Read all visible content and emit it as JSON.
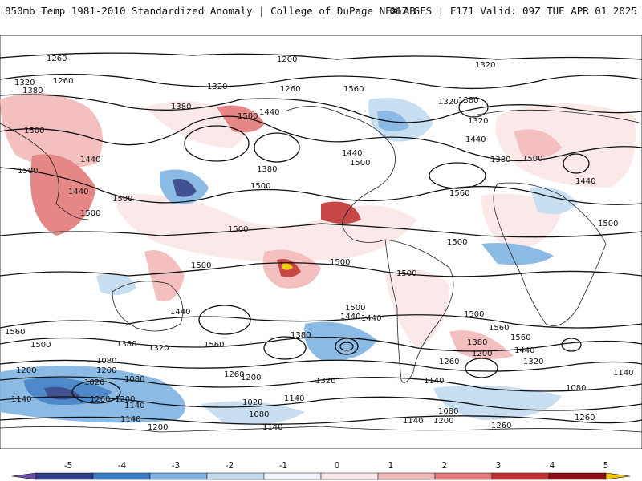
{
  "header": {
    "title_left": "850mb Temp 1981-2010 Standardized Anomaly | College of DuPage NEXLAB",
    "title_right": "06Z GFS | F171 Valid: 09Z TUE APR 01 2025"
  },
  "colors": {
    "strong_cold": "#2d3f86",
    "cold": "#3b7dc4",
    "mild_cold": "#9ec6ea",
    "slight_cold": "#d9e6f3",
    "slight_warm": "#f6d8d8",
    "mild_warm": "#eda4a4",
    "warm": "#d45656",
    "strong_warm": "#a8121c",
    "extreme_warm": "#f4c400",
    "land": "#f7f7f7",
    "contour": "#111111"
  },
  "contour_labels": [
    {
      "id": "c1",
      "text": "1260"
    },
    {
      "id": "c2",
      "text": "1200"
    },
    {
      "id": "c3",
      "text": "1320"
    },
    {
      "id": "c4",
      "text": "1320"
    },
    {
      "id": "c5",
      "text": "1260"
    },
    {
      "id": "c6",
      "text": "1380"
    },
    {
      "id": "c7",
      "text": "1320"
    },
    {
      "id": "c8",
      "text": "1260"
    },
    {
      "id": "c9",
      "text": "1380"
    },
    {
      "id": "c10",
      "text": "1440"
    },
    {
      "id": "c11",
      "text": "1560"
    },
    {
      "id": "c12",
      "text": "1500"
    },
    {
      "id": "c13",
      "text": "1500"
    },
    {
      "id": "c14",
      "text": "1380"
    },
    {
      "id": "c15",
      "text": "1440"
    },
    {
      "id": "c16",
      "text": "1500"
    },
    {
      "id": "c17",
      "text": "1440"
    },
    {
      "id": "c18",
      "text": "1500"
    },
    {
      "id": "c19",
      "text": "1500"
    },
    {
      "id": "c20",
      "text": "1440"
    },
    {
      "id": "c21",
      "text": "1500"
    },
    {
      "id": "c22",
      "text": "1500"
    },
    {
      "id": "c23",
      "text": "1320"
    },
    {
      "id": "c24",
      "text": "1380"
    },
    {
      "id": "c25",
      "text": "1320"
    },
    {
      "id": "c26",
      "text": "1380"
    },
    {
      "id": "c27",
      "text": "1440"
    },
    {
      "id": "c28",
      "text": "1500"
    },
    {
      "id": "c29",
      "text": "1500"
    },
    {
      "id": "c30",
      "text": "1560"
    },
    {
      "id": "c31",
      "text": "1440"
    },
    {
      "id": "c32",
      "text": "1500"
    },
    {
      "id": "c33",
      "text": "1500"
    },
    {
      "id": "c34",
      "text": "1500"
    },
    {
      "id": "c35",
      "text": "1500"
    },
    {
      "id": "c36",
      "text": "1500"
    },
    {
      "id": "c37",
      "text": "1440"
    },
    {
      "id": "c38",
      "text": "1560"
    },
    {
      "id": "c39",
      "text": "1500"
    },
    {
      "id": "c40",
      "text": "1440"
    },
    {
      "id": "c41",
      "text": "1380"
    },
    {
      "id": "c42",
      "text": "1560"
    },
    {
      "id": "c43",
      "text": "1380"
    },
    {
      "id": "c44",
      "text": "1320"
    },
    {
      "id": "c45",
      "text": "1260"
    },
    {
      "id": "c46",
      "text": "1200"
    },
    {
      "id": "c47",
      "text": "1080"
    },
    {
      "id": "c48",
      "text": "1020"
    },
    {
      "id": "c49",
      "text": "1080"
    },
    {
      "id": "c50",
      "text": "1200"
    },
    {
      "id": "c51",
      "text": "1140"
    },
    {
      "id": "c52",
      "text": "1260"
    },
    {
      "id": "c53",
      "text": "1200"
    },
    {
      "id": "c54",
      "text": "1140"
    },
    {
      "id": "c55",
      "text": "1020"
    },
    {
      "id": "c56",
      "text": "1140"
    },
    {
      "id": "c57",
      "text": "1080"
    },
    {
      "id": "c58",
      "text": "1200"
    },
    {
      "id": "c59",
      "text": "1140"
    },
    {
      "id": "c60",
      "text": "1320"
    },
    {
      "id": "c61",
      "text": "1260"
    },
    {
      "id": "c62",
      "text": "1140"
    },
    {
      "id": "c63",
      "text": "1380"
    },
    {
      "id": "c64",
      "text": "1200"
    },
    {
      "id": "c65",
      "text": "1440"
    },
    {
      "id": "c66",
      "text": "1320"
    },
    {
      "id": "c67",
      "text": "1560"
    },
    {
      "id": "c68",
      "text": "1140"
    },
    {
      "id": "c69",
      "text": "1080"
    },
    {
      "id": "c70",
      "text": "1080"
    },
    {
      "id": "c71",
      "text": "1140"
    },
    {
      "id": "c72",
      "text": "1200"
    },
    {
      "id": "c73",
      "text": "1260"
    },
    {
      "id": "c74",
      "text": "1260"
    },
    {
      "id": "c75",
      "text": "1200"
    },
    {
      "id": "c76",
      "text": "1140"
    },
    {
      "id": "c77",
      "text": "1500"
    },
    {
      "id": "c78",
      "text": "1500"
    },
    {
      "id": "c79",
      "text": "1440"
    },
    {
      "id": "c80",
      "text": "1560"
    }
  ],
  "colorbar": {
    "ticks": [
      "-5",
      "-4",
      "-3",
      "-2",
      "-1",
      "0",
      "1",
      "2",
      "3",
      "4",
      "5"
    ],
    "colors": [
      "#6a4ea8",
      "#2d3f86",
      "#3b7dc4",
      "#7fb3e3",
      "#c3dbf0",
      "#eef4fa",
      "#fbe7e7",
      "#f2b9b9",
      "#e37b7b",
      "#c23434",
      "#8e0c16",
      "#f4c400"
    ]
  }
}
